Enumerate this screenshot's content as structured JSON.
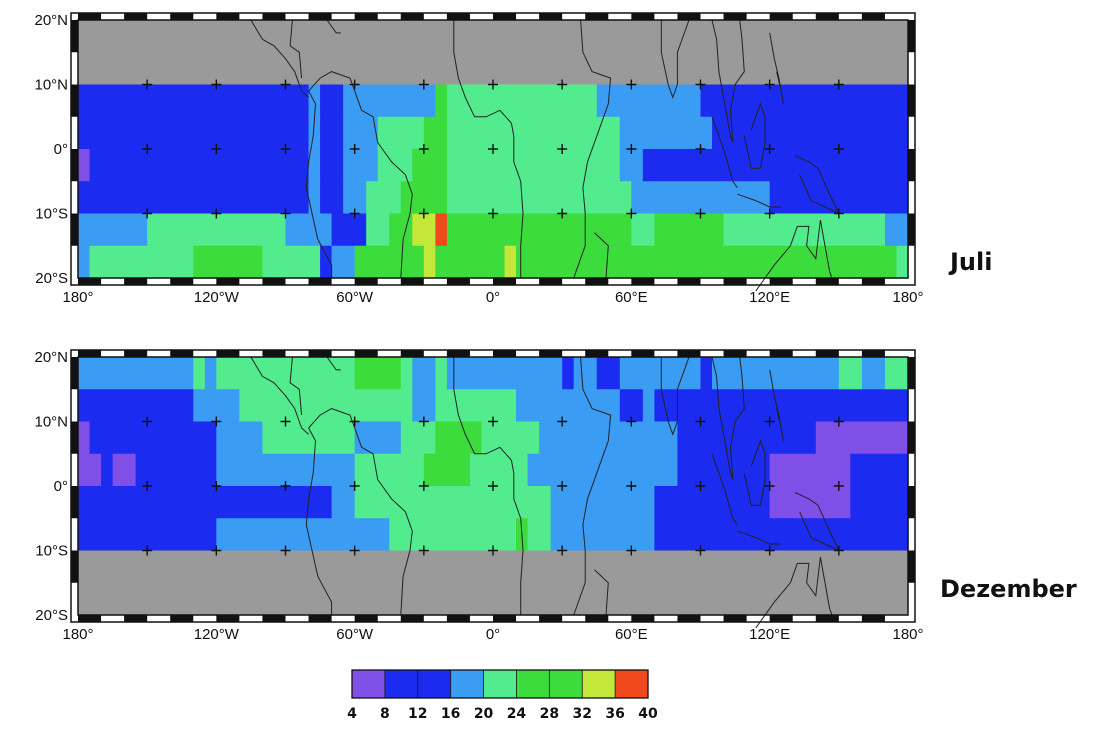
{
  "panels": [
    {
      "label": "Juli",
      "lat_range": [
        -20,
        20
      ],
      "lon_range": [
        -180,
        180
      ],
      "masked_fill": "#9a9a9a",
      "bands": [
        {
          "lat": [
            10,
            20
          ],
          "masked": true,
          "segments": []
        },
        {
          "lat": [
            5,
            10
          ],
          "segments": [
            [
              -180,
              -80,
              "b"
            ],
            [
              -80,
              -75,
              "l"
            ],
            [
              -75,
              -65,
              "b"
            ],
            [
              -65,
              -25,
              "l"
            ],
            [
              -25,
              -20,
              "g"
            ],
            [
              -20,
              10,
              "m"
            ],
            [
              10,
              45,
              "m"
            ],
            [
              45,
              90,
              "l"
            ],
            [
              90,
              180,
              "b"
            ]
          ]
        },
        {
          "lat": [
            0,
            5
          ],
          "segments": [
            [
              -180,
              -80,
              "b"
            ],
            [
              -80,
              -75,
              "l"
            ],
            [
              -75,
              -65,
              "b"
            ],
            [
              -65,
              -50,
              "l"
            ],
            [
              -50,
              -30,
              "m"
            ],
            [
              -30,
              -20,
              "g"
            ],
            [
              -20,
              15,
              "m"
            ],
            [
              15,
              40,
              "m"
            ],
            [
              40,
              55,
              "m"
            ],
            [
              55,
              95,
              "l"
            ],
            [
              95,
              180,
              "b"
            ]
          ]
        },
        {
          "lat": [
            -5,
            0
          ],
          "segments": [
            [
              -180,
              -175,
              "v"
            ],
            [
              -175,
              -80,
              "b"
            ],
            [
              -80,
              -75,
              "l"
            ],
            [
              -75,
              -65,
              "b"
            ],
            [
              -65,
              -50,
              "l"
            ],
            [
              -50,
              -35,
              "m"
            ],
            [
              -35,
              -20,
              "g"
            ],
            [
              -20,
              20,
              "m"
            ],
            [
              20,
              55,
              "m"
            ],
            [
              55,
              65,
              "l"
            ],
            [
              65,
              120,
              "b"
            ],
            [
              120,
              180,
              "b"
            ]
          ]
        },
        {
          "lat": [
            -10,
            -5
          ],
          "segments": [
            [
              -180,
              -80,
              "b"
            ],
            [
              -80,
              -75,
              "l"
            ],
            [
              -75,
              -65,
              "b"
            ],
            [
              -65,
              -55,
              "l"
            ],
            [
              -55,
              -40,
              "m"
            ],
            [
              -40,
              -20,
              "g"
            ],
            [
              -20,
              -10,
              "m"
            ],
            [
              -10,
              50,
              "m"
            ],
            [
              50,
              60,
              "m"
            ],
            [
              60,
              120,
              "l"
            ],
            [
              120,
              180,
              "b"
            ]
          ]
        },
        {
          "lat": [
            -15,
            -10
          ],
          "segments": [
            [
              -180,
              -150,
              "l"
            ],
            [
              -150,
              -90,
              "m"
            ],
            [
              -90,
              -80,
              "l"
            ],
            [
              -80,
              -70,
              "l"
            ],
            [
              -70,
              -55,
              "b"
            ],
            [
              -55,
              -45,
              "m"
            ],
            [
              -45,
              -35,
              "g"
            ],
            [
              -35,
              -25,
              "y"
            ],
            [
              -25,
              -20,
              "r"
            ],
            [
              -20,
              5,
              "g"
            ],
            [
              5,
              30,
              "g"
            ],
            [
              30,
              60,
              "g"
            ],
            [
              60,
              70,
              "m"
            ],
            [
              70,
              100,
              "g"
            ],
            [
              100,
              170,
              "m"
            ],
            [
              170,
              180,
              "l"
            ]
          ]
        },
        {
          "lat": [
            -20,
            -15
          ],
          "segments": [
            [
              -180,
              -175,
              "l"
            ],
            [
              -175,
              -130,
              "m"
            ],
            [
              -130,
              -100,
              "g"
            ],
            [
              -100,
              -75,
              "m"
            ],
            [
              -75,
              -70,
              "b"
            ],
            [
              -70,
              -60,
              "l"
            ],
            [
              -60,
              -45,
              "g"
            ],
            [
              -45,
              -30,
              "g"
            ],
            [
              -30,
              -25,
              "y"
            ],
            [
              -25,
              5,
              "g"
            ],
            [
              5,
              10,
              "y"
            ],
            [
              10,
              140,
              "g"
            ],
            [
              140,
              175,
              "g"
            ],
            [
              175,
              180,
              "m"
            ]
          ]
        }
      ]
    },
    {
      "label": "Dezember",
      "lat_range": [
        -20,
        20
      ],
      "lon_range": [
        -180,
        180
      ],
      "masked_fill": "#9a9a9a",
      "bands": [
        {
          "lat": [
            15,
            20
          ],
          "segments": [
            [
              -180,
              -130,
              "l"
            ],
            [
              -130,
              -125,
              "m"
            ],
            [
              -125,
              -120,
              "l"
            ],
            [
              -120,
              -60,
              "m"
            ],
            [
              -60,
              -40,
              "g"
            ],
            [
              -40,
              -35,
              "m"
            ],
            [
              -35,
              -25,
              "l"
            ],
            [
              -25,
              -20,
              "m"
            ],
            [
              -20,
              -15,
              "l"
            ],
            [
              -15,
              30,
              "l"
            ],
            [
              30,
              35,
              "b"
            ],
            [
              35,
              45,
              "l"
            ],
            [
              45,
              55,
              "b"
            ],
            [
              55,
              90,
              "l"
            ],
            [
              90,
              95,
              "b"
            ],
            [
              95,
              150,
              "l"
            ],
            [
              150,
              160,
              "m"
            ],
            [
              160,
              170,
              "l"
            ],
            [
              170,
              180,
              "m"
            ]
          ]
        },
        {
          "lat": [
            10,
            15
          ],
          "segments": [
            [
              -180,
              -130,
              "b"
            ],
            [
              -130,
              -110,
              "l"
            ],
            [
              -110,
              -95,
              "m"
            ],
            [
              -95,
              -35,
              "m"
            ],
            [
              -35,
              -25,
              "l"
            ],
            [
              -25,
              10,
              "m"
            ],
            [
              10,
              20,
              "l"
            ],
            [
              20,
              55,
              "l"
            ],
            [
              55,
              65,
              "b"
            ],
            [
              65,
              70,
              "l"
            ],
            [
              70,
              180,
              "b"
            ]
          ]
        },
        {
          "lat": [
            5,
            10
          ],
          "segments": [
            [
              -180,
              -175,
              "v"
            ],
            [
              -175,
              -120,
              "b"
            ],
            [
              -120,
              -100,
              "l"
            ],
            [
              -100,
              -60,
              "m"
            ],
            [
              -60,
              -40,
              "l"
            ],
            [
              -40,
              -25,
              "m"
            ],
            [
              -25,
              -5,
              "g"
            ],
            [
              -5,
              20,
              "m"
            ],
            [
              20,
              55,
              "l"
            ],
            [
              55,
              80,
              "l"
            ],
            [
              80,
              140,
              "b"
            ],
            [
              140,
              180,
              "v"
            ]
          ]
        },
        {
          "lat": [
            0,
            5
          ],
          "segments": [
            [
              -180,
              -170,
              "v"
            ],
            [
              -170,
              -165,
              "b"
            ],
            [
              -165,
              -155,
              "v"
            ],
            [
              -155,
              -120,
              "b"
            ],
            [
              -120,
              -60,
              "l"
            ],
            [
              -60,
              -30,
              "m"
            ],
            [
              -30,
              -10,
              "g"
            ],
            [
              -10,
              15,
              "m"
            ],
            [
              15,
              35,
              "l"
            ],
            [
              35,
              50,
              "l"
            ],
            [
              50,
              60,
              "l"
            ],
            [
              60,
              80,
              "l"
            ],
            [
              80,
              120,
              "b"
            ],
            [
              120,
              155,
              "v"
            ],
            [
              155,
              180,
              "b"
            ]
          ]
        },
        {
          "lat": [
            -5,
            0
          ],
          "segments": [
            [
              -180,
              -120,
              "b"
            ],
            [
              -120,
              -70,
              "b"
            ],
            [
              -70,
              -60,
              "l"
            ],
            [
              -60,
              -30,
              "m"
            ],
            [
              -30,
              25,
              "m"
            ],
            [
              25,
              60,
              "l"
            ],
            [
              60,
              70,
              "l"
            ],
            [
              70,
              120,
              "b"
            ],
            [
              120,
              155,
              "v"
            ],
            [
              155,
              180,
              "b"
            ]
          ]
        },
        {
          "lat": [
            -10,
            -5
          ],
          "segments": [
            [
              -180,
              -120,
              "b"
            ],
            [
              -120,
              -45,
              "l"
            ],
            [
              -45,
              -25,
              "m"
            ],
            [
              -25,
              10,
              "m"
            ],
            [
              10,
              15,
              "g"
            ],
            [
              15,
              25,
              "m"
            ],
            [
              25,
              50,
              "l"
            ],
            [
              50,
              70,
              "l"
            ],
            [
              70,
              180,
              "b"
            ]
          ]
        },
        {
          "lat": [
            -20,
            -10
          ],
          "masked": true,
          "segments": []
        }
      ]
    }
  ],
  "lon_ticks": [
    {
      "value": -180,
      "label": "180°"
    },
    {
      "value": -120,
      "label": "120°W"
    },
    {
      "value": -60,
      "label": "60°W"
    },
    {
      "value": 0,
      "label": "0°"
    },
    {
      "value": 60,
      "label": "60°E"
    },
    {
      "value": 120,
      "label": "120°E"
    },
    {
      "value": 180,
      "label": "180°"
    }
  ],
  "lat_ticks": [
    {
      "value": 20,
      "label": "20°N"
    },
    {
      "value": 10,
      "label": "10°N"
    },
    {
      "value": 0,
      "label": "0°"
    },
    {
      "value": -10,
      "label": "10°S"
    },
    {
      "value": -20,
      "label": "20°S"
    }
  ],
  "colorscale": {
    "bounds": [
      "4",
      "8",
      "12",
      "16",
      "20",
      "24",
      "28",
      "32",
      "36",
      "40"
    ],
    "colors": {
      "v": "#7f4fe8",
      "b": "#1b2cf0",
      "l": "#3a9cf2",
      "m": "#52ec8e",
      "g": "#3bdc3c",
      "y": "#c3e83a",
      "r": "#f04a1c"
    },
    "order": [
      "v",
      "b",
      "l",
      "m",
      "g",
      "y",
      "r"
    ]
  }
}
